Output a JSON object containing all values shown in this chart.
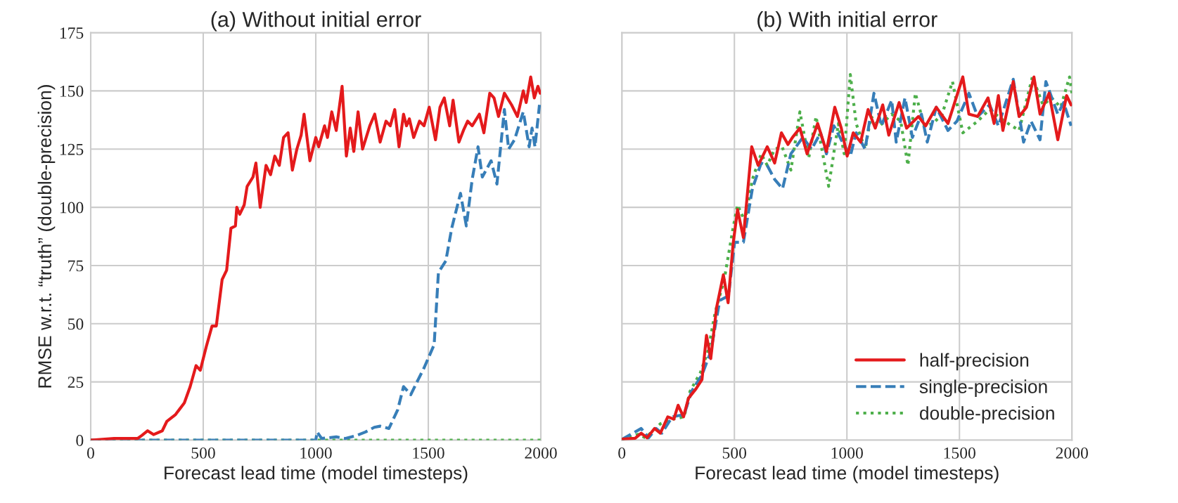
{
  "chart_data": [
    {
      "type": "line",
      "title": "(a) Without initial error",
      "xlabel": "Forecast lead time (model timesteps)",
      "ylabel": "RMSE w.r.t. “truth” (double-precision)",
      "xlim": [
        0,
        2000
      ],
      "ylim": [
        0,
        175
      ],
      "xticks": [
        0,
        500,
        1000,
        1500,
        2000
      ],
      "yticks": [
        0,
        25,
        50,
        75,
        100,
        125,
        150,
        175
      ],
      "grid": true,
      "legend": false,
      "series": [
        {
          "color": "#e41a1c",
          "line_style": "solid",
          "x": [
            0,
            104,
            208,
            227,
            253,
            279,
            318,
            338,
            377,
            416,
            442,
            468,
            487,
            513,
            539,
            558,
            584,
            604,
            623,
            643,
            649,
            662,
            682,
            695,
            721,
            734,
            753,
            779,
            799,
            818,
            838,
            857,
            877,
            896,
            916,
            935,
            948,
            974,
            1000,
            1013,
            1039,
            1052,
            1071,
            1091,
            1117,
            1136,
            1153,
            1169,
            1188,
            1208,
            1240,
            1262,
            1286,
            1312,
            1331,
            1351,
            1370,
            1390,
            1403,
            1416,
            1435,
            1461,
            1481,
            1504,
            1532,
            1552,
            1571,
            1595,
            1610,
            1636,
            1656,
            1675,
            1695,
            1727,
            1747,
            1773,
            1792,
            1812,
            1838,
            1870,
            1896,
            1922,
            1935,
            1955,
            1971,
            1987,
            1997
          ],
          "values": [
            0,
            0.7,
            0.7,
            2,
            4,
            2.4,
            4,
            8,
            11,
            16,
            23,
            32,
            30,
            40,
            49,
            49,
            69,
            73,
            91,
            92,
            100,
            97,
            101,
            109,
            113,
            119,
            100,
            118,
            114,
            122,
            118,
            130,
            132,
            116,
            125,
            131,
            140,
            120,
            130,
            126,
            135,
            130,
            141,
            133,
            152,
            122,
            134,
            124,
            141,
            125,
            135,
            140,
            128,
            137,
            135,
            142,
            126,
            140,
            135,
            138,
            130,
            137,
            135,
            143,
            129,
            143,
            147,
            135,
            146,
            128,
            133,
            137,
            135,
            140,
            132,
            149,
            147,
            139,
            149,
            144,
            139,
            150,
            145,
            156,
            147,
            152,
            149
          ]
        },
        {
          "color": "#377eb8",
          "line_style": "dashed",
          "x": [
            0,
            500,
            1000,
            1006,
            1026,
            1091,
            1130,
            1182,
            1221,
            1260,
            1286,
            1325,
            1364,
            1390,
            1422,
            1455,
            1481,
            1526,
            1545,
            1578,
            1604,
            1643,
            1669,
            1695,
            1721,
            1740,
            1779,
            1805,
            1838,
            1857,
            1883,
            1922,
            1948,
            1961,
            1974,
            1994
          ],
          "values": [
            0,
            0,
            0,
            3.5,
            0.7,
            1.4,
            0.7,
            2,
            3.5,
            5.5,
            6,
            5,
            13,
            23,
            19.5,
            26,
            31,
            41,
            72,
            77,
            91,
            106,
            92,
            112,
            126,
            113,
            120,
            110,
            142,
            125,
            129,
            141,
            126,
            134,
            126,
            144
          ]
        },
        {
          "color": "#4daf4a",
          "line_style": "dotted",
          "x": [
            0,
            2000
          ],
          "values": [
            0,
            0
          ]
        }
      ]
    },
    {
      "type": "line",
      "title": "(b) With initial error",
      "xlabel": "Forecast lead time (model timesteps)",
      "xlim": [
        0,
        2000
      ],
      "ylim": [
        0,
        175
      ],
      "xticks": [
        0,
        500,
        1000,
        1500,
        2000
      ],
      "yticks": [
        0,
        25,
        50,
        75,
        100,
        125,
        150,
        175
      ],
      "grid": true,
      "legend": "bottom right",
      "tick_labels": "x",
      "series": [
        {
          "name": "half-precision",
          "color": "#e41a1c",
          "line_style": "solid",
          "x": [
            0,
            59,
            86,
            112,
            145,
            171,
            204,
            231,
            250,
            274,
            296,
            329,
            356,
            376,
            395,
            421,
            451,
            472,
            494,
            514,
            540,
            577,
            606,
            646,
            679,
            709,
            738,
            758,
            791,
            823,
            870,
            909,
            946,
            975,
            1001,
            1028,
            1061,
            1094,
            1126,
            1159,
            1186,
            1232,
            1265,
            1318,
            1350,
            1397,
            1449,
            1482,
            1515,
            1542,
            1581,
            1627,
            1654,
            1673,
            1693,
            1739,
            1765,
            1798,
            1831,
            1858,
            1898,
            1937,
            1976,
            1996
          ],
          "values": [
            0.4,
            0.8,
            3,
            1,
            5,
            3,
            10,
            9,
            15,
            10,
            18,
            22,
            26,
            45,
            35,
            57,
            71,
            59,
            84,
            99,
            87,
            126,
            118,
            126,
            119,
            132,
            127,
            130,
            134,
            123,
            136,
            124,
            143,
            134,
            122,
            132,
            128,
            142,
            134,
            144,
            131,
            145,
            134,
            139,
            135,
            143,
            136,
            146,
            156,
            140,
            139,
            147,
            136,
            148,
            133,
            154,
            139,
            143,
            156,
            140,
            149,
            129,
            148,
            144
          ]
        },
        {
          "name": "single-precision",
          "color": "#377eb8",
          "line_style": "dashed",
          "x": [
            0,
            86,
            119,
            152,
            178,
            224,
            277,
            310,
            356,
            395,
            435,
            474,
            501,
            540,
            580,
            619,
            646,
            679,
            714,
            751,
            804,
            843,
            883,
            909,
            942,
            975,
            1015,
            1041,
            1081,
            1120,
            1153,
            1199,
            1219,
            1258,
            1291,
            1331,
            1357,
            1397,
            1449,
            1489,
            1542,
            1581,
            1634,
            1673,
            1739,
            1785,
            1818,
            1858,
            1884,
            1937,
            1963,
            1996
          ],
          "values": [
            0.3,
            5,
            1,
            5,
            3,
            10,
            11,
            21,
            28,
            38,
            60,
            62,
            85,
            85,
            108,
            119,
            118,
            112,
            108,
            123,
            130,
            125,
            132,
            123,
            135,
            129,
            122,
            132,
            125,
            149,
            135,
            146,
            128,
            147,
            130,
            140,
            128,
            143,
            133,
            137,
            149,
            139,
            144,
            135,
            155,
            128,
            137,
            129,
            154,
            140,
            145,
            135
          ]
        },
        {
          "name": "double-precision",
          "color": "#4daf4a",
          "line_style": "dotted",
          "x": [
            0,
            72,
            105,
            171,
            224,
            277,
            303,
            349,
            382,
            415,
            455,
            494,
            514,
            547,
            580,
            619,
            646,
            679,
            712,
            751,
            791,
            830,
            863,
            883,
            919,
            962,
            988,
            1015,
            1041,
            1081,
            1107,
            1146,
            1199,
            1239,
            1271,
            1304,
            1344,
            1383,
            1423,
            1469,
            1515,
            1581,
            1634,
            1700,
            1765,
            1824,
            1871,
            1910,
            1950,
            1989,
            2000
          ],
          "values": [
            0.3,
            2.5,
            1,
            7,
            9,
            10,
            21,
            29,
            38,
            55,
            69,
            91,
            101,
            94,
            112,
            123,
            118,
            125,
            126,
            116,
            141,
            121,
            139,
            128,
            109,
            136,
            123,
            157,
            136,
            125,
            139,
            135,
            140,
            137,
            118,
            149,
            135,
            136,
            140,
            154,
            132,
            137,
            142,
            137,
            133,
            156,
            144,
            147,
            143,
            156,
            149
          ]
        }
      ]
    }
  ]
}
